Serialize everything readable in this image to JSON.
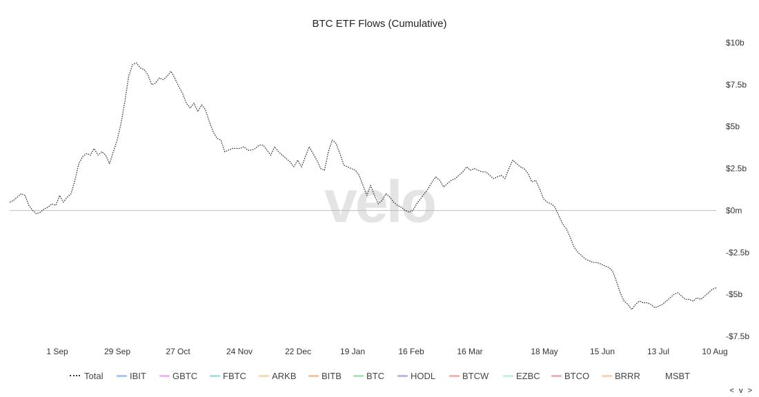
{
  "chart_data": {
    "type": "line",
    "title": "BTC ETF Flows (Cumulative)",
    "watermark": "velo",
    "ylim": [
      -7.5,
      10
    ],
    "y_ticks": [
      {
        "value": 10,
        "label": "$10b"
      },
      {
        "value": 7.5,
        "label": "$7.5b"
      },
      {
        "value": 5,
        "label": "$5b"
      },
      {
        "value": 2.5,
        "label": "$2.5b"
      },
      {
        "value": 0,
        "label": "$0m"
      },
      {
        "value": -2.5,
        "label": "-$2.5b"
      },
      {
        "value": -5,
        "label": "-$5b"
      },
      {
        "value": -7.5,
        "label": "-$7.5b"
      }
    ],
    "x_ticks": [
      "1 Sep",
      "29 Sep",
      "27 Oct",
      "24 Nov",
      "22 Dec",
      "19 Jan",
      "16 Feb",
      "16 Mar",
      "18 May",
      "15 Jun",
      "13 Jul",
      "10 Aug"
    ],
    "zero_line": true,
    "series": [
      {
        "name": "Total",
        "style": "dotted",
        "color": "#333333",
        "values": [
          0.5,
          0.6,
          0.8,
          1.0,
          0.9,
          0.3,
          0.0,
          -0.2,
          -0.1,
          0.1,
          0.2,
          0.4,
          0.3,
          0.9,
          0.5,
          0.8,
          1.0,
          1.8,
          2.8,
          3.2,
          3.4,
          3.3,
          3.7,
          3.3,
          3.5,
          3.3,
          2.8,
          3.5,
          4.2,
          5.2,
          6.5,
          8.0,
          8.7,
          8.8,
          8.5,
          8.4,
          8.1,
          7.5,
          7.6,
          7.9,
          7.8,
          8.0,
          8.3,
          7.9,
          7.4,
          7.0,
          6.4,
          6.1,
          6.4,
          5.9,
          6.3,
          6.0,
          5.3,
          4.7,
          4.3,
          4.2,
          3.5,
          3.6,
          3.7,
          3.7,
          3.7,
          3.8,
          3.6,
          3.6,
          3.7,
          3.9,
          3.9,
          3.6,
          3.3,
          3.8,
          3.5,
          3.3,
          3.1,
          2.9,
          2.6,
          3.0,
          2.6,
          3.2,
          3.8,
          3.4,
          3.0,
          2.5,
          2.4,
          3.5,
          4.2,
          4.0,
          3.4,
          2.7,
          2.6,
          2.5,
          2.4,
          2.1,
          1.5,
          0.9,
          1.5,
          0.9,
          0.4,
          0.6,
          1.0,
          0.8,
          0.5,
          0.3,
          0.2,
          0.0,
          -0.1,
          0.0,
          0.4,
          0.7,
          1.0,
          1.3,
          1.7,
          2.0,
          1.8,
          1.4,
          1.6,
          1.8,
          1.9,
          2.1,
          2.3,
          2.6,
          2.4,
          2.5,
          2.4,
          2.3,
          2.3,
          2.1,
          1.9,
          2.0,
          2.1,
          1.9,
          2.5,
          3.0,
          2.8,
          2.6,
          2.5,
          2.2,
          1.7,
          1.8,
          1.3,
          0.7,
          0.5,
          0.4,
          0.2,
          -0.3,
          -0.8,
          -1.1,
          -1.6,
          -2.2,
          -2.5,
          -2.7,
          -2.9,
          -3.0,
          -3.1,
          -3.1,
          -3.2,
          -3.3,
          -3.4,
          -3.6,
          -4.2,
          -4.9,
          -5.4,
          -5.6,
          -5.9,
          -5.6,
          -5.4,
          -5.5,
          -5.5,
          -5.6,
          -5.8,
          -5.7,
          -5.6,
          -5.4,
          -5.2,
          -5.0,
          -4.9,
          -5.1,
          -5.3,
          -5.3,
          -5.4,
          -5.2,
          -5.3,
          -5.1,
          -4.9,
          -4.7,
          -4.6
        ]
      }
    ]
  },
  "legend": {
    "items": [
      {
        "label": "Total",
        "color": "#333333",
        "style": "dotted"
      },
      {
        "label": "IBIT",
        "color": "#a9c8f0",
        "style": "solid"
      },
      {
        "label": "GBTC",
        "color": "#f0b8f0",
        "style": "solid"
      },
      {
        "label": "FBTC",
        "color": "#a8e4e4",
        "style": "solid"
      },
      {
        "label": "ARKB",
        "color": "#f7dcb0",
        "style": "solid"
      },
      {
        "label": "BITB",
        "color": "#f4c9a2",
        "style": "solid"
      },
      {
        "label": "BTC",
        "color": "#a9e8b8",
        "style": "solid"
      },
      {
        "label": "HODL",
        "color": "#b8b8ec",
        "style": "solid"
      },
      {
        "label": "BTCW",
        "color": "#f5b5ae",
        "style": "solid"
      },
      {
        "label": "EZBC",
        "color": "#c8f0e4",
        "style": "solid"
      },
      {
        "label": "BTCO",
        "color": "#f2b0b0",
        "style": "solid"
      },
      {
        "label": "BRRR",
        "color": "#f7d6b8",
        "style": "solid"
      },
      {
        "label": "MSBT",
        "color": "",
        "style": "none"
      }
    ]
  },
  "nav": {
    "arrows": "< v >"
  }
}
